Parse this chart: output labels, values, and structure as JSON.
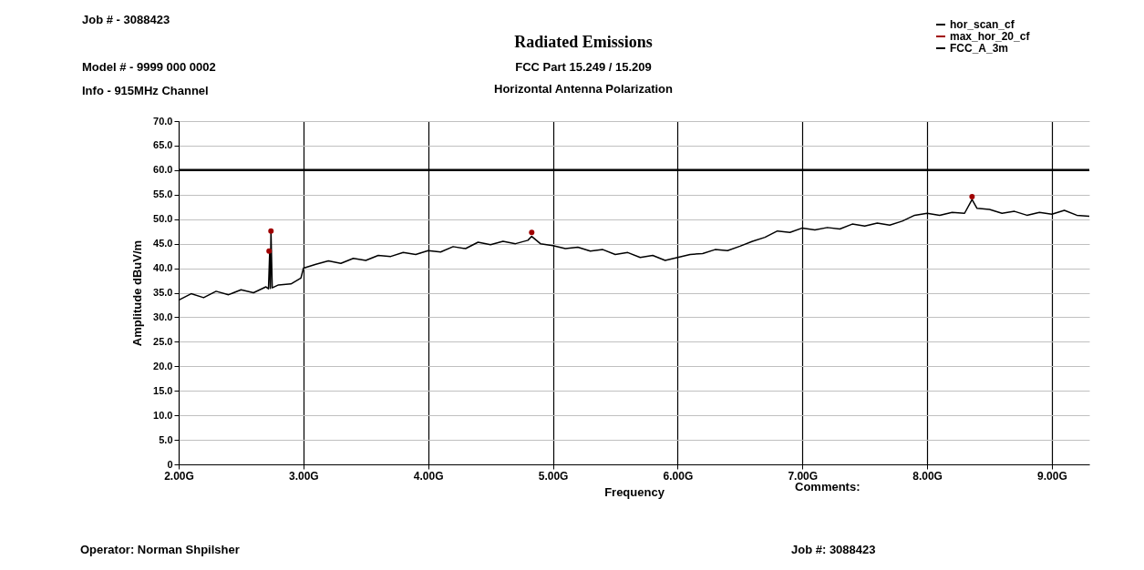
{
  "chart_data": {
    "type": "line",
    "title": "Radiated Emissions",
    "subtitle": "FCC Part 15.249 / 15.209\nHorizontal Antenna Polarization",
    "xlabel": "Frequency",
    "ylabel": "Amplitude dBuV/m",
    "annotations": [
      "Job # - 3088423",
      "Model # - 9999 000 0002",
      "Info - 915MHz Channel",
      "Comments:",
      "Operator: Norman Shpilsher",
      "Job #: 3088423"
    ],
    "series": [
      {
        "name": "hor_scan_cf",
        "color": "#000000",
        "x": [
          2.0,
          2.1,
          2.2,
          2.3,
          2.4,
          2.5,
          2.6,
          2.7,
          2.72,
          2.73,
          2.735,
          2.74,
          2.75,
          2.8,
          2.9,
          2.98,
          3.0,
          3.1,
          3.2,
          3.3,
          3.4,
          3.5,
          3.6,
          3.7,
          3.8,
          3.9,
          4.0,
          4.1,
          4.2,
          4.3,
          4.4,
          4.5,
          4.6,
          4.7,
          4.8,
          4.83,
          4.9,
          5.0,
          5.1,
          5.2,
          5.3,
          5.4,
          5.5,
          5.6,
          5.7,
          5.8,
          5.9,
          6.0,
          6.1,
          6.2,
          6.3,
          6.4,
          6.5,
          6.6,
          6.7,
          6.8,
          6.9,
          7.0,
          7.1,
          7.2,
          7.3,
          7.4,
          7.5,
          7.6,
          7.7,
          7.8,
          7.9,
          8.0,
          8.1,
          8.2,
          8.3,
          8.36,
          8.4,
          8.5,
          8.6,
          8.7,
          8.8,
          8.9,
          9.0,
          9.1,
          9.2,
          9.3
        ],
        "values": [
          33.5,
          34.8,
          34.0,
          35.3,
          34.6,
          35.6,
          35.0,
          36.2,
          35.8,
          43.5,
          35.9,
          47.6,
          36.0,
          36.6,
          36.8,
          38.0,
          40.0,
          40.8,
          41.5,
          41.0,
          42.0,
          41.6,
          42.6,
          42.4,
          43.2,
          42.8,
          43.6,
          43.3,
          44.4,
          44.0,
          45.3,
          44.8,
          45.5,
          45.0,
          45.7,
          46.5,
          45.0,
          44.6,
          44.0,
          44.3,
          43.5,
          43.8,
          42.8,
          43.2,
          42.2,
          42.6,
          41.6,
          42.2,
          42.8,
          43.0,
          43.8,
          43.6,
          44.5,
          45.5,
          46.3,
          47.6,
          47.3,
          48.2,
          47.8,
          48.3,
          48.0,
          49.0,
          48.6,
          49.2,
          48.8,
          49.6,
          50.8,
          51.2,
          50.8,
          51.4,
          51.2,
          54.0,
          52.2,
          52.0,
          51.2,
          51.6,
          50.8,
          51.4,
          51.0,
          51.8,
          50.8,
          50.6
        ]
      },
      {
        "name": "max_hor_20_cf",
        "color": "#a00000",
        "type": "scatter",
        "x": [
          2.725,
          2.74,
          4.83,
          8.36
        ],
        "values": [
          43.5,
          47.6,
          47.3,
          54.6
        ]
      },
      {
        "name": "FCC_A_3m",
        "color": "#000000",
        "type": "line",
        "x": [
          2.0,
          9.3
        ],
        "values": [
          60,
          60
        ]
      }
    ],
    "xlim": [
      2.0,
      9.3
    ],
    "xticks": [
      {
        "value": 2,
        "label": "2.00G"
      },
      {
        "value": 3,
        "label": "3.00G"
      },
      {
        "value": 4,
        "label": "4.00G"
      },
      {
        "value": 5,
        "label": "5.00G"
      },
      {
        "value": 6,
        "label": "6.00G"
      },
      {
        "value": 7,
        "label": "7.00G"
      },
      {
        "value": 8,
        "label": "8.00G"
      },
      {
        "value": 9,
        "label": "9.00G"
      }
    ],
    "ylim": [
      0,
      70
    ],
    "yticks": [
      0,
      {
        "value": 5,
        "label": "5.0"
      },
      {
        "value": 10,
        "label": "10.0"
      },
      {
        "value": 15,
        "label": "15.0"
      },
      {
        "value": 20,
        "label": "20.0"
      },
      {
        "value": 25,
        "label": "25.0"
      },
      {
        "value": 30,
        "label": "30.0"
      },
      {
        "value": 35,
        "label": "35.0"
      },
      {
        "value": 40,
        "label": "40.0"
      },
      {
        "value": 45,
        "label": "45.0"
      },
      {
        "value": 50,
        "label": "50.0"
      },
      {
        "value": 55,
        "label": "55.0"
      },
      {
        "value": 60,
        "label": "60.0"
      },
      {
        "value": 65,
        "label": "65.0"
      },
      {
        "value": 70,
        "label": "70.0"
      }
    ],
    "grid": true,
    "legend": "top right"
  }
}
